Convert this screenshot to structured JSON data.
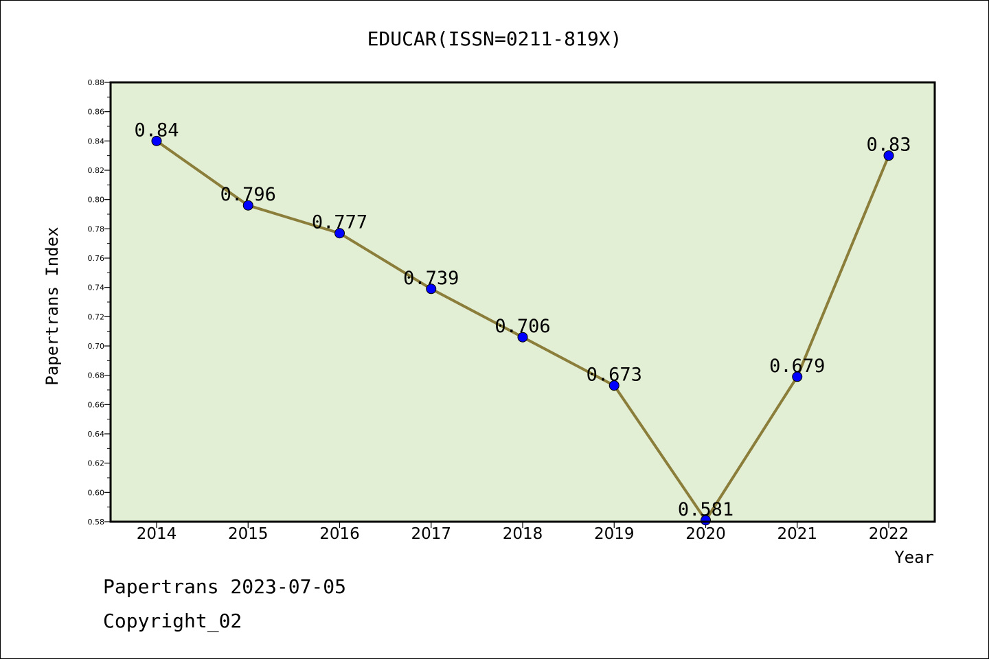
{
  "chart_data": {
    "type": "line",
    "title": "EDUCAR(ISSN=0211-819X)",
    "xlabel": "Year",
    "ylabel": "Papertrans Index",
    "categories": [
      "2014",
      "2015",
      "2016",
      "2017",
      "2018",
      "2019",
      "2020",
      "2021",
      "2022"
    ],
    "series": [
      {
        "values": [
          0.84,
          0.796,
          0.777,
          0.739,
          0.706,
          0.673,
          0.581,
          0.679,
          0.83
        ],
        "labels": [
          "0.84",
          "0.796",
          "0.777",
          "0.739",
          "0.706",
          "0.673",
          "0.581",
          "0.679",
          "0.83"
        ]
      }
    ],
    "ylim": [
      0.58,
      0.88
    ],
    "yticks": [
      "0.58",
      "0.60",
      "0.62",
      "0.64",
      "0.66",
      "0.68",
      "0.70",
      "0.72",
      "0.74",
      "0.76",
      "0.78",
      "0.80",
      "0.82",
      "0.84",
      "0.86",
      "0.88"
    ],
    "grid": false,
    "colors": {
      "plot_background": "#e2efd5",
      "line": "#8b7d3a",
      "marker": "#0000ff"
    }
  },
  "footer": {
    "line1": "Papertrans 2023-07-05",
    "line2": "Copyright_02"
  }
}
